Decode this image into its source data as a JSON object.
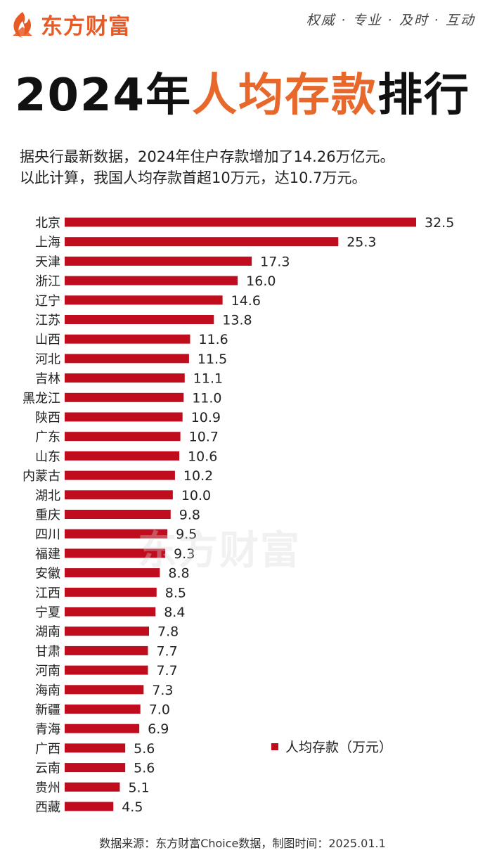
{
  "header": {
    "brand": "东方财富",
    "slogan": "权威 · 专业 · 及时 · 互动"
  },
  "title": {
    "year_part": "2024年",
    "highlight_part": "人均存款",
    "end_part": "排行"
  },
  "subtitle": {
    "line1": "据央行最新数据，2024年住户存款增加了14.26万亿元。",
    "line2": "以此计算，我国人均存款首超10万元，达10.7万元。"
  },
  "watermark": "东方财富",
  "footer": "数据来源：东方财富Choice数据，制图时间：2025.01.1",
  "chart_data": {
    "type": "bar",
    "orientation": "horizontal",
    "categories": [
      "北京",
      "上海",
      "天津",
      "浙江",
      "辽宁",
      "江苏",
      "山西",
      "河北",
      "吉林",
      "黑龙江",
      "陕西",
      "广东",
      "山东",
      "内蒙古",
      "湖北",
      "重庆",
      "四川",
      "福建",
      "安徽",
      "江西",
      "宁夏",
      "湖南",
      "甘肃",
      "河南",
      "海南",
      "新疆",
      "青海",
      "广西",
      "云南",
      "贵州",
      "西藏"
    ],
    "value_labels": [
      "32.5",
      "25.3",
      "17.3",
      "16.0",
      "14.6",
      "13.8",
      "11.6",
      "11.5",
      "11.1",
      "11.0",
      "10.9",
      "10.7",
      "10.6",
      "10.2",
      "10.0",
      "9.8",
      "9.5",
      "9.3",
      "8.8",
      "8.5",
      "8.4",
      "7.8",
      "7.7",
      "7.7",
      "7.3",
      "7.0",
      "6.9",
      "5.6",
      "5.6",
      "5.1",
      "4.5"
    ],
    "series": [
      {
        "name": "人均存款（万元）",
        "values": [
          32.5,
          25.3,
          17.3,
          16.0,
          14.6,
          13.8,
          11.6,
          11.5,
          11.1,
          11.0,
          10.9,
          10.7,
          10.6,
          10.2,
          10.0,
          9.8,
          9.5,
          9.3,
          8.8,
          8.5,
          8.4,
          7.8,
          7.7,
          7.7,
          7.3,
          7.0,
          6.9,
          5.6,
          5.6,
          5.1,
          4.5
        ],
        "color": "#c00d1e"
      }
    ],
    "legend_position": "bottom-right",
    "grid": false
  }
}
